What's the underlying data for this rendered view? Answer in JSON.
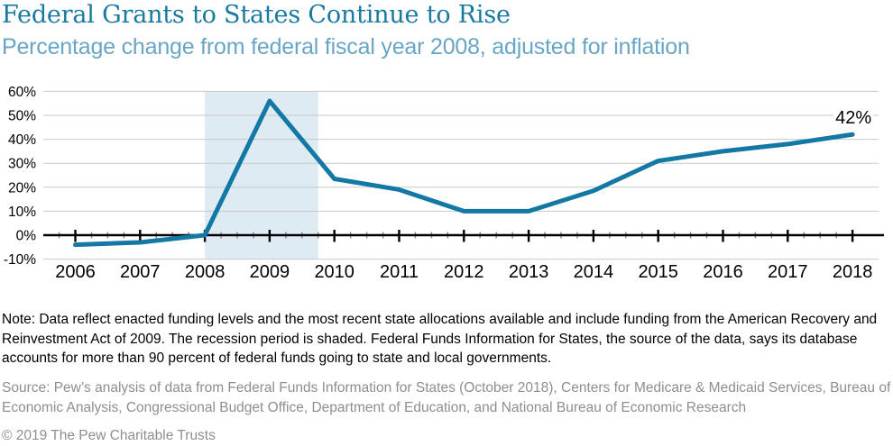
{
  "header": {
    "title": "Federal Grants to States Continue to Rise",
    "subtitle": "Percentage change from federal fiscal year 2008, adjusted for inflation"
  },
  "chart_data": {
    "type": "line",
    "title": "Federal Grants to States Continue to Rise",
    "subtitle": "Percentage change from federal fiscal year 2008, adjusted for inflation",
    "x": [
      2006,
      2007,
      2008,
      2009,
      2010,
      2011,
      2012,
      2013,
      2014,
      2015,
      2016,
      2017,
      2018
    ],
    "xtick_labels": [
      "2006",
      "2007",
      "2008",
      "2009",
      "2010",
      "2011",
      "2012",
      "2013",
      "2014",
      "2015",
      "2016",
      "2017",
      "2018"
    ],
    "series": [
      {
        "name": "Percentage change in federal grants to states vs. FY2008",
        "values": [
          -4,
          -3,
          0,
          56,
          23.5,
          19,
          10,
          10,
          18.5,
          31,
          35,
          38,
          42
        ]
      }
    ],
    "end_label": "42%",
    "ylim": [
      -10,
      60
    ],
    "ytick_step": 10,
    "ytick_labels": [
      "60%",
      "50%",
      "40%",
      "30%",
      "20%",
      "10%",
      "0%",
      "-10%"
    ],
    "xlabel": "",
    "ylabel": "",
    "grid": true,
    "legend": false,
    "zero_axis_emphasized": true,
    "minor_xticks_per_year": 4,
    "recession_band": {
      "start": 2008,
      "end": 2009.75,
      "label": "recession period (shaded)"
    }
  },
  "footnotes": {
    "note": "Note: Data reflect enacted funding levels and the most recent state allocations available and include funding from the American Recovery and Reinvestment Act of 2009. The recession period is shaded. Federal Funds Information for States, the source of the data, says its database accounts for more than 90 percent of federal funds going to state and local governments.",
    "source": "Source: Pew’s analysis of data from Federal Funds Information for States (October 2018), Centers for Medicare & Medicaid Services, Bureau of Economic Analysis, Congressional Budget Office, Department of Education, and National Bureau of Economic Research",
    "copyright": "© 2019 The Pew Charitable Trusts"
  },
  "colors": {
    "title_color": "#1a79a1",
    "subtitle_color": "#69a5c5",
    "line_color": "#1378a4",
    "band_color": "#deebf2",
    "grid_color": "#c9c9c9",
    "axis_color": "#000000",
    "text_color": "#000000",
    "muted_color": "#8e8e8e",
    "bg_color": "#ffffff"
  }
}
